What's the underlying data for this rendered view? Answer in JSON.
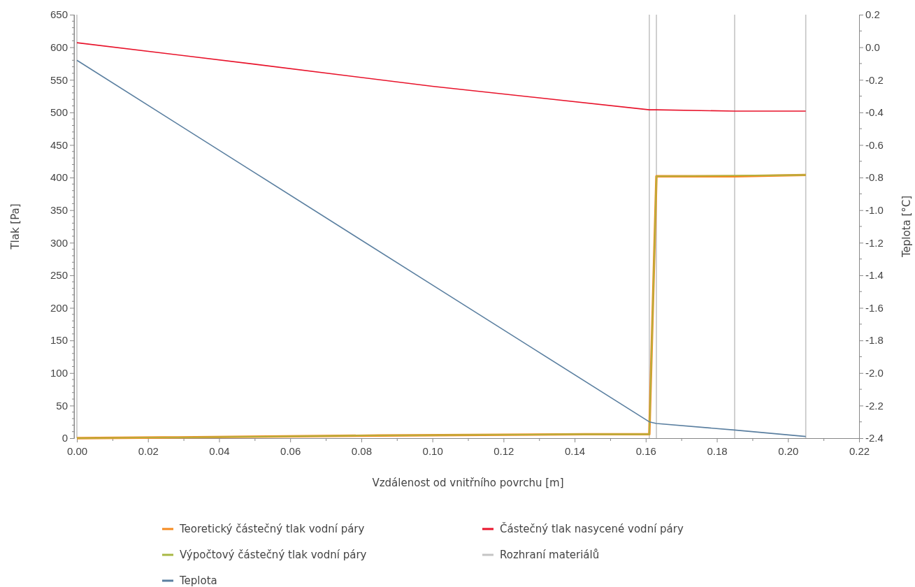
{
  "chart_data": {
    "type": "line",
    "xlabel": "Vzdálenost od vnitřního povrchu [m]",
    "ylabel": "Tlak [Pa]",
    "y2label": "Teplota [°C]",
    "xlim": [
      0,
      0.22
    ],
    "ylim": [
      0,
      650
    ],
    "y2lim": [
      -2.4,
      0.2
    ],
    "xticks": [
      {
        "value": 0,
        "label": "0.00"
      },
      {
        "value": 0.01,
        "label": null
      },
      {
        "value": 0.02,
        "label": "0.02"
      },
      {
        "value": 0.03,
        "label": null
      },
      {
        "value": 0.04,
        "label": "0.04"
      },
      {
        "value": 0.05,
        "label": null
      },
      {
        "value": 0.06,
        "label": "0.06"
      },
      {
        "value": 0.07,
        "label": null
      },
      {
        "value": 0.08,
        "label": "0.08"
      },
      {
        "value": 0.09,
        "label": null
      },
      {
        "value": 0.1,
        "label": "0.10"
      },
      {
        "value": 0.11,
        "label": null
      },
      {
        "value": 0.12,
        "label": "0.12"
      },
      {
        "value": 0.13,
        "label": null
      },
      {
        "value": 0.14,
        "label": "0.14"
      },
      {
        "value": 0.15,
        "label": null
      },
      {
        "value": 0.16,
        "label": "0.16"
      },
      {
        "value": 0.17,
        "label": null
      },
      {
        "value": 0.18,
        "label": "0.18"
      },
      {
        "value": 0.19,
        "label": null
      },
      {
        "value": 0.2,
        "label": "0.20"
      },
      {
        "value": 0.21,
        "label": null
      },
      {
        "value": 0.22,
        "label": "0.22"
      }
    ],
    "yticks": [
      0,
      50,
      100,
      150,
      200,
      250,
      300,
      350,
      400,
      450,
      500,
      550,
      600,
      650
    ],
    "y2ticks": [
      {
        "value": -2.4,
        "label": "-2.4"
      },
      {
        "value": -2.2,
        "label": "-2.2"
      },
      {
        "value": -2.0,
        "label": "-2.0"
      },
      {
        "value": -1.8,
        "label": "-1.8"
      },
      {
        "value": -1.6,
        "label": "-1.6"
      },
      {
        "value": -1.4,
        "label": "-1.4"
      },
      {
        "value": -1.2,
        "label": "-1.2"
      },
      {
        "value": -1.0,
        "label": "-1.0"
      },
      {
        "value": -0.8,
        "label": "-0.8"
      },
      {
        "value": -0.6,
        "label": "-0.6"
      },
      {
        "value": -0.4,
        "label": "-0.4"
      },
      {
        "value": -0.2,
        "label": "-0.2"
      },
      {
        "value": 0,
        "label": "0.0"
      },
      {
        "value": 0.2,
        "label": "0.2"
      }
    ],
    "grid": false,
    "legend": "bottom",
    "marker": "none",
    "line_style": "solid",
    "series": [
      {
        "name": "Teoretický částečný tlak vodní páry",
        "color": "#f58a1f",
        "x": [
          0,
          0.024,
          0.085,
          0.143,
          0.161,
          0.163,
          0.185,
          0.205
        ],
        "values": [
          0,
          1,
          4,
          6,
          6,
          402,
          402,
          404
        ]
      },
      {
        "name": "Výpočtový částečný tlak vodní páry",
        "color": "#a8b845",
        "x": [
          0,
          0.026,
          0.081,
          0.138,
          0.161,
          0.163,
          0.205
        ],
        "values": [
          0,
          1,
          4,
          6,
          6,
          402,
          404
        ]
      },
      {
        "name": "Teplota",
        "color": "#5a7fa0",
        "axis": "y2",
        "x": [
          0,
          0.05,
          0.1,
          0.161,
          0.163,
          0.185,
          0.205
        ],
        "values": [
          -0.08,
          -0.77,
          -1.46,
          -2.3,
          -2.31,
          -2.35,
          -2.39
        ]
      },
      {
        "name": "Částečný tlak nasycené vodní páry",
        "color": "#e8132b",
        "x": [
          0,
          0.05,
          0.1,
          0.161,
          0.163,
          0.185,
          0.205
        ],
        "values": [
          607,
          574,
          540,
          504,
          504,
          502,
          502
        ]
      }
    ],
    "ref_lines": [
      {
        "axis": "x",
        "value": 0,
        "label": "Rozhraní materiálů",
        "color": "#c4c4c4"
      },
      {
        "axis": "x",
        "value": 0.161,
        "color": "#c4c4c4"
      },
      {
        "axis": "x",
        "value": 0.163,
        "color": "#c4c4c4"
      },
      {
        "axis": "x",
        "value": 0.185,
        "color": "#c4c4c4"
      },
      {
        "axis": "x",
        "value": 0.205,
        "color": "#c4c4c4"
      }
    ]
  }
}
